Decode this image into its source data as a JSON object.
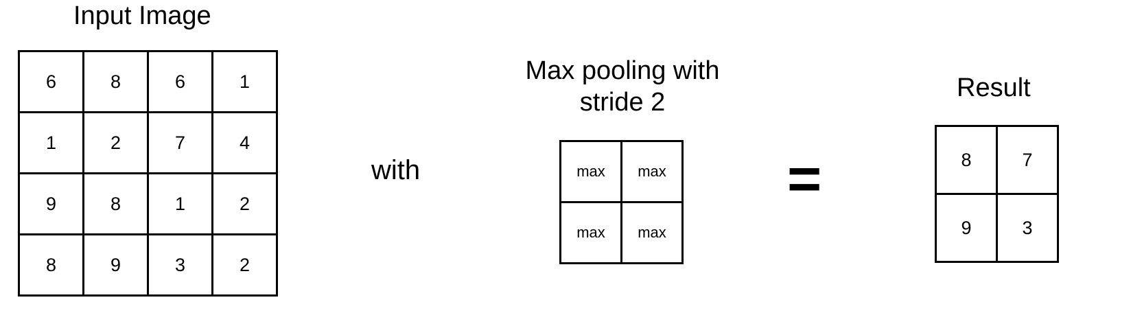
{
  "input": {
    "title": "Input Image",
    "rows": [
      [
        "6",
        "8",
        "6",
        "1"
      ],
      [
        "1",
        "2",
        "7",
        "4"
      ],
      [
        "9",
        "8",
        "1",
        "2"
      ],
      [
        "8",
        "9",
        "3",
        "2"
      ]
    ]
  },
  "connector_with": "with",
  "pooling": {
    "title_line1": "Max pooling with",
    "title_line2": "stride 2",
    "rows": [
      [
        "max",
        "max"
      ],
      [
        "max",
        "max"
      ]
    ]
  },
  "equals_sign": "=",
  "result": {
    "title": "Result",
    "rows": [
      [
        "8",
        "7"
      ],
      [
        "9",
        "3"
      ]
    ]
  }
}
